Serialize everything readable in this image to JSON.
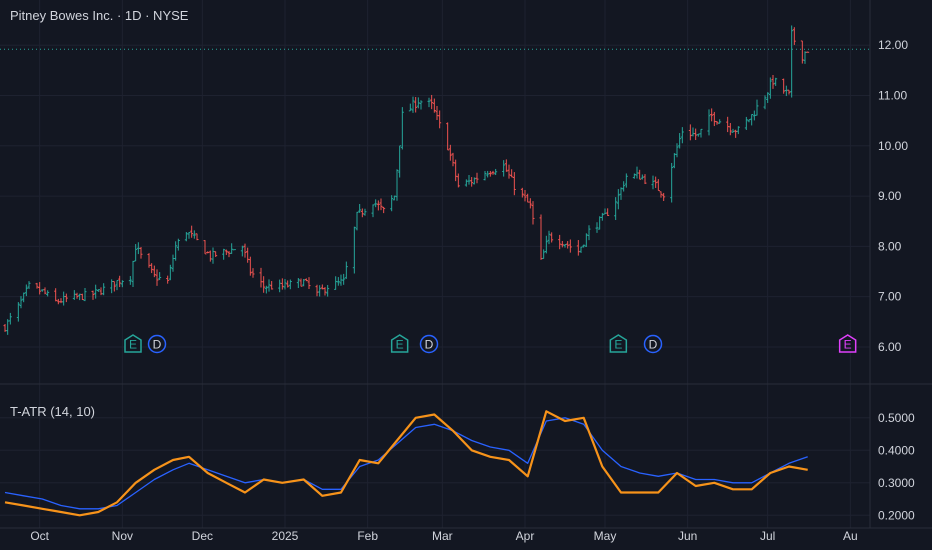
{
  "header": {
    "title": "Pitney Bowes Inc. · 1D · NYSE"
  },
  "indicator": {
    "title": "T-ATR (14, 10)"
  },
  "colors": {
    "background": "#131722",
    "grid": "#1e2230",
    "up": "#26a69a",
    "down": "#ef5350",
    "atr_fast": "#f7931a",
    "atr_slow": "#2962ff",
    "axis_text": "#d1d4dc",
    "earnings": "#26a69a",
    "dividend": "#2962ff",
    "upcoming_earnings": "#e040fb"
  },
  "markers": [
    {
      "type": "E",
      "label": "E",
      "date": "2024-11-05"
    },
    {
      "type": "D",
      "label": "D",
      "date": "2024-11-14"
    },
    {
      "type": "E",
      "label": "E",
      "date": "2025-02-13"
    },
    {
      "type": "D",
      "label": "D",
      "date": "2025-02-24"
    },
    {
      "type": "E",
      "label": "E",
      "date": "2025-05-06"
    },
    {
      "type": "D",
      "label": "D",
      "date": "2025-05-19"
    },
    {
      "type": "E-upcoming",
      "label": "E",
      "date": "2025-07-31"
    }
  ],
  "chart_data": [
    {
      "type": "candlestick",
      "price_axis_ticks": [
        "6.00",
        "7.00",
        "8.00",
        "9.00",
        "10.00",
        "11.00",
        "12.00"
      ],
      "ylim": [
        5.8,
        12.8
      ],
      "last_price": 11.92,
      "x_tick_labels": [
        {
          "date": "2024-10-01",
          "label": "Oct"
        },
        {
          "date": "2024-11-01",
          "label": "Nov"
        },
        {
          "date": "2024-12-01",
          "label": "Dec"
        },
        {
          "date": "2025-01-01",
          "label": "2025"
        },
        {
          "date": "2025-02-01",
          "label": "Feb"
        },
        {
          "date": "2025-03-01",
          "label": "Mar"
        },
        {
          "date": "2025-04-01",
          "label": "Apr"
        },
        {
          "date": "2025-05-01",
          "label": "May"
        },
        {
          "date": "2025-06-01",
          "label": "Jun"
        },
        {
          "date": "2025-07-01",
          "label": "Jul"
        },
        {
          "date": "2025-08-01",
          "label": "Au"
        }
      ],
      "anchors": [
        [
          "2024-09-18",
          6.4
        ],
        [
          "2024-09-23",
          6.8
        ],
        [
          "2024-09-27",
          7.2
        ],
        [
          "2024-10-02",
          7.1
        ],
        [
          "2024-10-07",
          6.9
        ],
        [
          "2024-10-11",
          6.95
        ],
        [
          "2024-10-16",
          7.0
        ],
        [
          "2024-10-21",
          7.05
        ],
        [
          "2024-10-25",
          7.15
        ],
        [
          "2024-10-30",
          7.3
        ],
        [
          "2024-11-04",
          7.4
        ],
        [
          "2024-11-06",
          8.0
        ],
        [
          "2024-11-08",
          7.8
        ],
        [
          "2024-11-13",
          7.4
        ],
        [
          "2024-11-18",
          7.3
        ],
        [
          "2024-11-21",
          8.0
        ],
        [
          "2024-11-25",
          8.3
        ],
        [
          "2024-11-29",
          8.1
        ],
        [
          "2024-12-04",
          7.8
        ],
        [
          "2024-12-10",
          7.9
        ],
        [
          "2024-12-16",
          8.0
        ],
        [
          "2024-12-19",
          7.5
        ],
        [
          "2024-12-24",
          7.2
        ],
        [
          "2024-12-31",
          7.2
        ],
        [
          "2025-01-08",
          7.3
        ],
        [
          "2025-01-13",
          7.05
        ],
        [
          "2025-01-17",
          7.2
        ],
        [
          "2025-01-23",
          7.3
        ],
        [
          "2025-01-28",
          8.6
        ],
        [
          "2025-02-03",
          8.9
        ],
        [
          "2025-02-07",
          8.7
        ],
        [
          "2025-02-11",
          9.0
        ],
        [
          "2025-02-14",
          10.6
        ],
        [
          "2025-02-20",
          10.9
        ],
        [
          "2025-02-25",
          10.8
        ],
        [
          "2025-03-03",
          10.0
        ],
        [
          "2025-03-07",
          9.2
        ],
        [
          "2025-03-12",
          9.3
        ],
        [
          "2025-03-18",
          9.5
        ],
        [
          "2025-03-24",
          9.6
        ],
        [
          "2025-03-28",
          9.2
        ],
        [
          "2025-04-03",
          8.8
        ],
        [
          "2025-04-07",
          7.7
        ],
        [
          "2025-04-10",
          8.2
        ],
        [
          "2025-04-15",
          8.1
        ],
        [
          "2025-04-21",
          7.9
        ],
        [
          "2025-04-25",
          8.3
        ],
        [
          "2025-05-01",
          8.6
        ],
        [
          "2025-05-06",
          9.0
        ],
        [
          "2025-05-09",
          9.4
        ],
        [
          "2025-05-14",
          9.4
        ],
        [
          "2025-05-20",
          9.2
        ],
        [
          "2025-05-23",
          9.05
        ],
        [
          "2025-05-27",
          9.8
        ],
        [
          "2025-05-30",
          10.3
        ],
        [
          "2025-06-05",
          10.2
        ],
        [
          "2025-06-10",
          10.6
        ],
        [
          "2025-06-16",
          10.4
        ],
        [
          "2025-06-20",
          10.3
        ],
        [
          "2025-06-25",
          10.6
        ],
        [
          "2025-06-30",
          11.0
        ],
        [
          "2025-07-03",
          11.3
        ],
        [
          "2025-07-07",
          11.1
        ],
        [
          "2025-07-09",
          11.0
        ],
        [
          "2025-07-10",
          12.2
        ],
        [
          "2025-07-14",
          11.8
        ],
        [
          "2025-07-16",
          11.92
        ]
      ]
    },
    {
      "type": "line",
      "title": "T-ATR (14, 10)",
      "y_axis_ticks": [
        "0.2000",
        "0.3000",
        "0.4000",
        "0.5000"
      ],
      "ylim": [
        0.17,
        0.57
      ],
      "series": [
        {
          "color": "#f7931a",
          "points": [
            [
              "2024-09-18",
              0.24
            ],
            [
              "2024-09-25",
              0.23
            ],
            [
              "2024-10-02",
              0.22
            ],
            [
              "2024-10-09",
              0.21
            ],
            [
              "2024-10-16",
              0.2
            ],
            [
              "2024-10-23",
              0.21
            ],
            [
              "2024-10-30",
              0.24
            ],
            [
              "2024-11-06",
              0.3
            ],
            [
              "2024-11-13",
              0.34
            ],
            [
              "2024-11-20",
              0.37
            ],
            [
              "2024-11-26",
              0.38
            ],
            [
              "2024-12-03",
              0.33
            ],
            [
              "2024-12-10",
              0.3
            ],
            [
              "2024-12-17",
              0.27
            ],
            [
              "2024-12-24",
              0.31
            ],
            [
              "2024-12-31",
              0.3
            ],
            [
              "2025-01-08",
              0.31
            ],
            [
              "2025-01-15",
              0.26
            ],
            [
              "2025-01-22",
              0.27
            ],
            [
              "2025-01-29",
              0.37
            ],
            [
              "2025-02-05",
              0.36
            ],
            [
              "2025-02-12",
              0.43
            ],
            [
              "2025-02-19",
              0.5
            ],
            [
              "2025-02-26",
              0.51
            ],
            [
              "2025-03-05",
              0.46
            ],
            [
              "2025-03-12",
              0.4
            ],
            [
              "2025-03-19",
              0.38
            ],
            [
              "2025-03-26",
              0.37
            ],
            [
              "2025-04-02",
              0.32
            ],
            [
              "2025-04-09",
              0.52
            ],
            [
              "2025-04-16",
              0.49
            ],
            [
              "2025-04-23",
              0.5
            ],
            [
              "2025-04-30",
              0.35
            ],
            [
              "2025-05-07",
              0.27
            ],
            [
              "2025-05-14",
              0.27
            ],
            [
              "2025-05-21",
              0.27
            ],
            [
              "2025-05-28",
              0.33
            ],
            [
              "2025-06-04",
              0.29
            ],
            [
              "2025-06-11",
              0.3
            ],
            [
              "2025-06-18",
              0.28
            ],
            [
              "2025-06-25",
              0.28
            ],
            [
              "2025-07-02",
              0.33
            ],
            [
              "2025-07-09",
              0.35
            ],
            [
              "2025-07-16",
              0.34
            ]
          ]
        },
        {
          "color": "#2962ff",
          "points": [
            [
              "2024-09-18",
              0.27
            ],
            [
              "2024-09-25",
              0.26
            ],
            [
              "2024-10-02",
              0.25
            ],
            [
              "2024-10-09",
              0.23
            ],
            [
              "2024-10-16",
              0.22
            ],
            [
              "2024-10-23",
              0.22
            ],
            [
              "2024-10-30",
              0.23
            ],
            [
              "2024-11-06",
              0.27
            ],
            [
              "2024-11-13",
              0.31
            ],
            [
              "2024-11-20",
              0.34
            ],
            [
              "2024-11-26",
              0.36
            ],
            [
              "2024-12-03",
              0.34
            ],
            [
              "2024-12-10",
              0.32
            ],
            [
              "2024-12-17",
              0.3
            ],
            [
              "2024-12-24",
              0.31
            ],
            [
              "2024-12-31",
              0.3
            ],
            [
              "2025-01-08",
              0.31
            ],
            [
              "2025-01-15",
              0.28
            ],
            [
              "2025-01-22",
              0.28
            ],
            [
              "2025-01-29",
              0.35
            ],
            [
              "2025-02-05",
              0.37
            ],
            [
              "2025-02-12",
              0.42
            ],
            [
              "2025-02-19",
              0.47
            ],
            [
              "2025-02-26",
              0.48
            ],
            [
              "2025-03-05",
              0.46
            ],
            [
              "2025-03-12",
              0.43
            ],
            [
              "2025-03-19",
              0.41
            ],
            [
              "2025-03-26",
              0.4
            ],
            [
              "2025-04-02",
              0.36
            ],
            [
              "2025-04-09",
              0.49
            ],
            [
              "2025-04-16",
              0.5
            ],
            [
              "2025-04-23",
              0.48
            ],
            [
              "2025-04-30",
              0.4
            ],
            [
              "2025-05-07",
              0.35
            ],
            [
              "2025-05-14",
              0.33
            ],
            [
              "2025-05-21",
              0.32
            ],
            [
              "2025-05-28",
              0.33
            ],
            [
              "2025-06-04",
              0.31
            ],
            [
              "2025-06-11",
              0.31
            ],
            [
              "2025-06-18",
              0.3
            ],
            [
              "2025-06-25",
              0.3
            ],
            [
              "2025-07-02",
              0.33
            ],
            [
              "2025-07-09",
              0.36
            ],
            [
              "2025-07-16",
              0.38
            ]
          ]
        }
      ]
    }
  ]
}
